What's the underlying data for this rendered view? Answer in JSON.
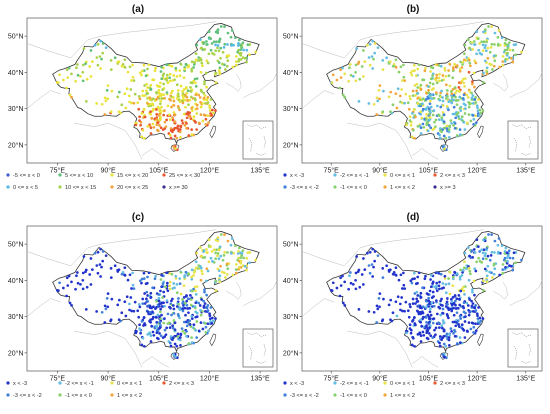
{
  "chart_data": [
    {
      "type": "scatter",
      "title": "(a)",
      "lon_ticks": [
        "75°E",
        "90°E",
        "105°E",
        "120°E",
        "135°E"
      ],
      "lat_ticks": [
        "50°N",
        "40°N",
        "30°N",
        "20°N"
      ],
      "legend": [
        {
          "label": "-5 <= x < 0",
          "color": "#3a5fcd"
        },
        {
          "label": "0 <= x < 5",
          "color": "#57b8e6"
        },
        {
          "label": "5 <= x < 10",
          "color": "#5fc07a"
        },
        {
          "label": "10 <= x < 15",
          "color": "#a8d24a"
        },
        {
          "label": "15 <= x < 20",
          "color": "#e9e33a"
        },
        {
          "label": "20 <= x < 25",
          "color": "#f2a43a"
        },
        {
          "label": "25 <= x < 30",
          "color": "#e8552e"
        },
        {
          "label": "x >= 30",
          "color": "#3b2f8f"
        }
      ]
    },
    {
      "type": "scatter",
      "title": "(b)",
      "lon_ticks": [
        "75°E",
        "90°E",
        "105°E",
        "120°E",
        "135°E"
      ],
      "lat_ticks": [
        "50°N",
        "40°N",
        "30°N",
        "20°N"
      ],
      "legend": [
        {
          "label": "x < -3",
          "color": "#2233cc"
        },
        {
          "label": "-3 <= x < -2",
          "color": "#3f7fd9"
        },
        {
          "label": "-2 <= x < -1",
          "color": "#63bde0"
        },
        {
          "label": "-1 <= x < 0",
          "color": "#88d06a"
        },
        {
          "label": "0 <= x < 1",
          "color": "#e8e34a"
        },
        {
          "label": "1 <= x < 2",
          "color": "#f2a63a"
        },
        {
          "label": "2 <= x < 3",
          "color": "#e75a30"
        },
        {
          "label": "x >= 3",
          "color": "#3b2f8f"
        }
      ]
    },
    {
      "type": "scatter",
      "title": "(c)",
      "lon_ticks": [
        "75°E",
        "90°E",
        "105°E",
        "120°E",
        "135°E"
      ],
      "lat_ticks": [
        "50°N",
        "40°N",
        "30°N",
        "20°N"
      ],
      "legend": [
        {
          "label": "x < -3",
          "color": "#2233cc"
        },
        {
          "label": "-3 <= x < -2",
          "color": "#3f7fd9"
        },
        {
          "label": "-2 <= x < -1",
          "color": "#63bde0"
        },
        {
          "label": "-1 <= x < 0",
          "color": "#88d06a"
        },
        {
          "label": "0 <= x < 1",
          "color": "#e8e34a"
        },
        {
          "label": "1 <= x < 2",
          "color": "#f2a63a"
        },
        {
          "label": "2 <= x < 3",
          "color": "#e75a30"
        }
      ]
    },
    {
      "type": "scatter",
      "title": "(d)",
      "lon_ticks": [
        "75°E",
        "90°E",
        "105°E",
        "120°E",
        "135°E"
      ],
      "lat_ticks": [
        "50°N",
        "40°N",
        "30°N",
        "20°N"
      ],
      "legend": [
        {
          "label": "x < -3",
          "color": "#2233cc"
        },
        {
          "label": "-3 <= x < -2",
          "color": "#3f7fd9"
        },
        {
          "label": "-2 <= x < -1",
          "color": "#63bde0"
        },
        {
          "label": "-1 <= x < 0",
          "color": "#88d06a"
        },
        {
          "label": "0 <= x < 1",
          "color": "#e8e34a"
        },
        {
          "label": "1 <= x < 2",
          "color": "#f2a63a"
        },
        {
          "label": "2 <= x < 3",
          "color": "#e75a30"
        }
      ]
    }
  ]
}
